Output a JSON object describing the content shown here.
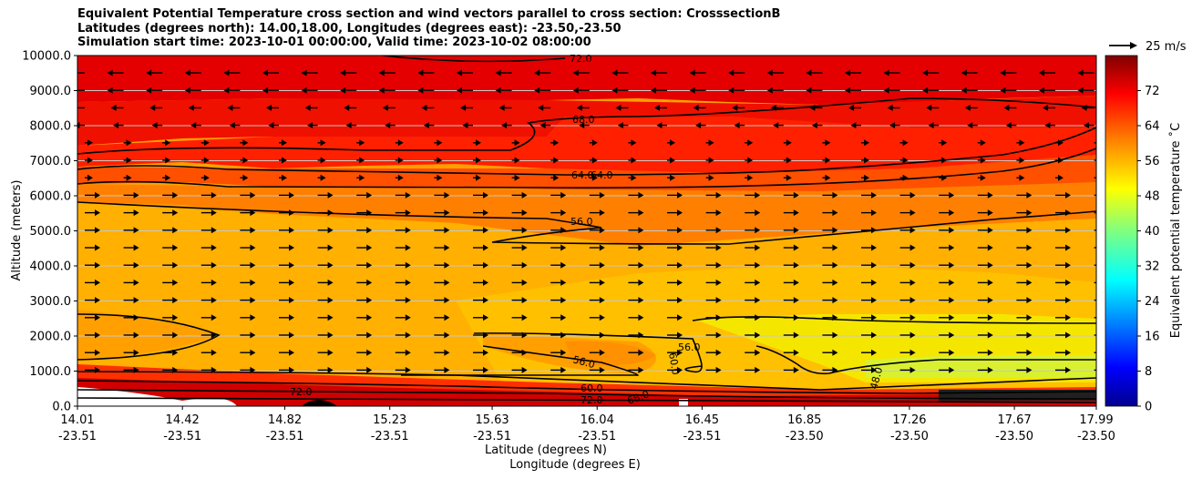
{
  "chart_data": {
    "type": "heatmap",
    "title_lines": [
      "Equivalent Potential Temperature cross section and wind vectors parallel to cross section: CrosssectionB",
      "Latitudes (degrees north): 14.00,18.00, Longitudes (degrees east): -23.50,-23.50",
      "Simulation start time: 2023-10-01 00:00:00, Valid time: 2023-10-02 08:00:00"
    ],
    "ylabel": "Altitude (meters)",
    "xlabel": "Latitude (degrees N)",
    "xlabel2": "Longitude (degrees E)",
    "x_ticks": [
      {
        "lat": "14.01",
        "lon": "-23.51"
      },
      {
        "lat": "14.42",
        "lon": "-23.51"
      },
      {
        "lat": "14.82",
        "lon": "-23.51"
      },
      {
        "lat": "15.23",
        "lon": "-23.51"
      },
      {
        "lat": "15.63",
        "lon": "-23.51"
      },
      {
        "lat": "16.04",
        "lon": "-23.51"
      },
      {
        "lat": "16.45",
        "lon": "-23.51"
      },
      {
        "lat": "16.85",
        "lon": "-23.50"
      },
      {
        "lat": "17.26",
        "lon": "-23.50"
      },
      {
        "lat": "17.67",
        "lon": "-23.50"
      },
      {
        "lat": "17.99",
        "lon": "-23.50"
      }
    ],
    "y_ticks": [
      "0.0",
      "1000.0",
      "2000.0",
      "3000.0",
      "4000.0",
      "5000.0",
      "6000.0",
      "7000.0",
      "8000.0",
      "9000.0",
      "10000.0"
    ],
    "ylim": [
      0,
      10000
    ],
    "xlim": [
      14.01,
      17.99
    ],
    "grid": "horizontal",
    "colorbar": {
      "label": "Equivalent potential temperature ˚C",
      "ticks": [
        "0",
        "8",
        "16",
        "24",
        "32",
        "40",
        "48",
        "56",
        "64",
        "72"
      ],
      "range": [
        0,
        80
      ],
      "colormap": "jet",
      "colors": [
        "#00008f",
        "#0000ff",
        "#0080ff",
        "#00ffff",
        "#80ff80",
        "#ffff00",
        "#ff8000",
        "#ff0000",
        "#800000"
      ]
    },
    "contour_labels": [
      "72.0",
      "68.0",
      "64.0",
      "64.0",
      "56.0",
      "56.0",
      "56.0",
      "60.0",
      "48.0",
      "72.0",
      "72.0",
      "60.0",
      "68.0"
    ],
    "wind_legend": "25 m/s",
    "temperature_layers": [
      {
        "altitude": 9500,
        "theta": 75
      },
      {
        "altitude": 8500,
        "theta": 70
      },
      {
        "altitude": 7500,
        "theta": 66
      },
      {
        "altitude": 6500,
        "theta": 62
      },
      {
        "altitude": 5500,
        "theta": 57
      },
      {
        "altitude": 3500,
        "theta": 53
      },
      {
        "altitude": 1500,
        "theta": 52
      },
      {
        "altitude": 500,
        "theta": 62
      }
    ]
  }
}
